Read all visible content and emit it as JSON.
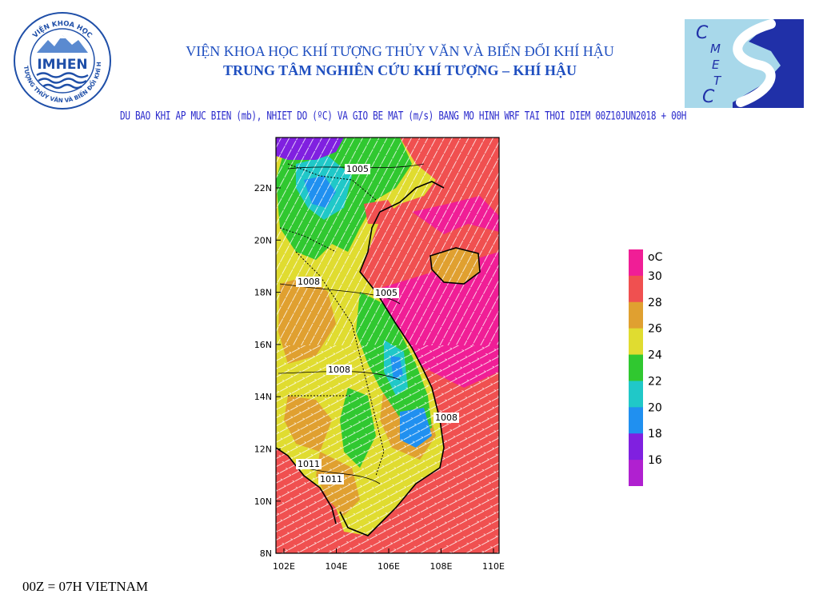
{
  "header": {
    "title_line1": "VIỆN KHOA HỌC KHÍ TƯỢNG THỦY VĂN VÀ BIẾN ĐỔI KHÍ HẬU",
    "title_line2": "TRUNG TÂM NGHIÊN CỨU KHÍ TƯỢNG – KHÍ HẬU",
    "caption": "DU BAO KHI AP MUC BIEN (mb), NHIET DO (ºC) VA GIO BE MAT (m/s) BANG MO HINH WRF TAI THOI DIEM 00Z10JUN2018 + 00H"
  },
  "logos": {
    "imhen": {
      "name": "IMHEN",
      "ring_top": "VIỆN KHOA HỌC",
      "ring_bottom": "KHÍ TƯỢNG THỦY VĂN VÀ BIẾN ĐỔI KHÍ HẬU"
    },
    "cmetc": {
      "letters": [
        "C",
        "M",
        "E",
        "T",
        "C"
      ]
    }
  },
  "map": {
    "lat_labels": [
      "22N",
      "20N",
      "18N",
      "16N",
      "14N",
      "12N",
      "10N",
      "8N"
    ],
    "lon_labels": [
      "102E",
      "104E",
      "106E",
      "108E",
      "110E"
    ],
    "isobar_labels": [
      "1005",
      "1008",
      "1005",
      "1008",
      "1008",
      "1011",
      "1011"
    ]
  },
  "legend": {
    "unit": "oC",
    "levels": [
      "30",
      "28",
      "26",
      "24",
      "22",
      "20",
      "18",
      "16"
    ],
    "colors": [
      "#f01e96",
      "#f05050",
      "#e0a030",
      "#e0dc30",
      "#30c830",
      "#20c8c8",
      "#2090f0",
      "#8020e0",
      "#b020d0"
    ]
  },
  "footer": {
    "note": "00Z = 07H VIETNAM"
  }
}
